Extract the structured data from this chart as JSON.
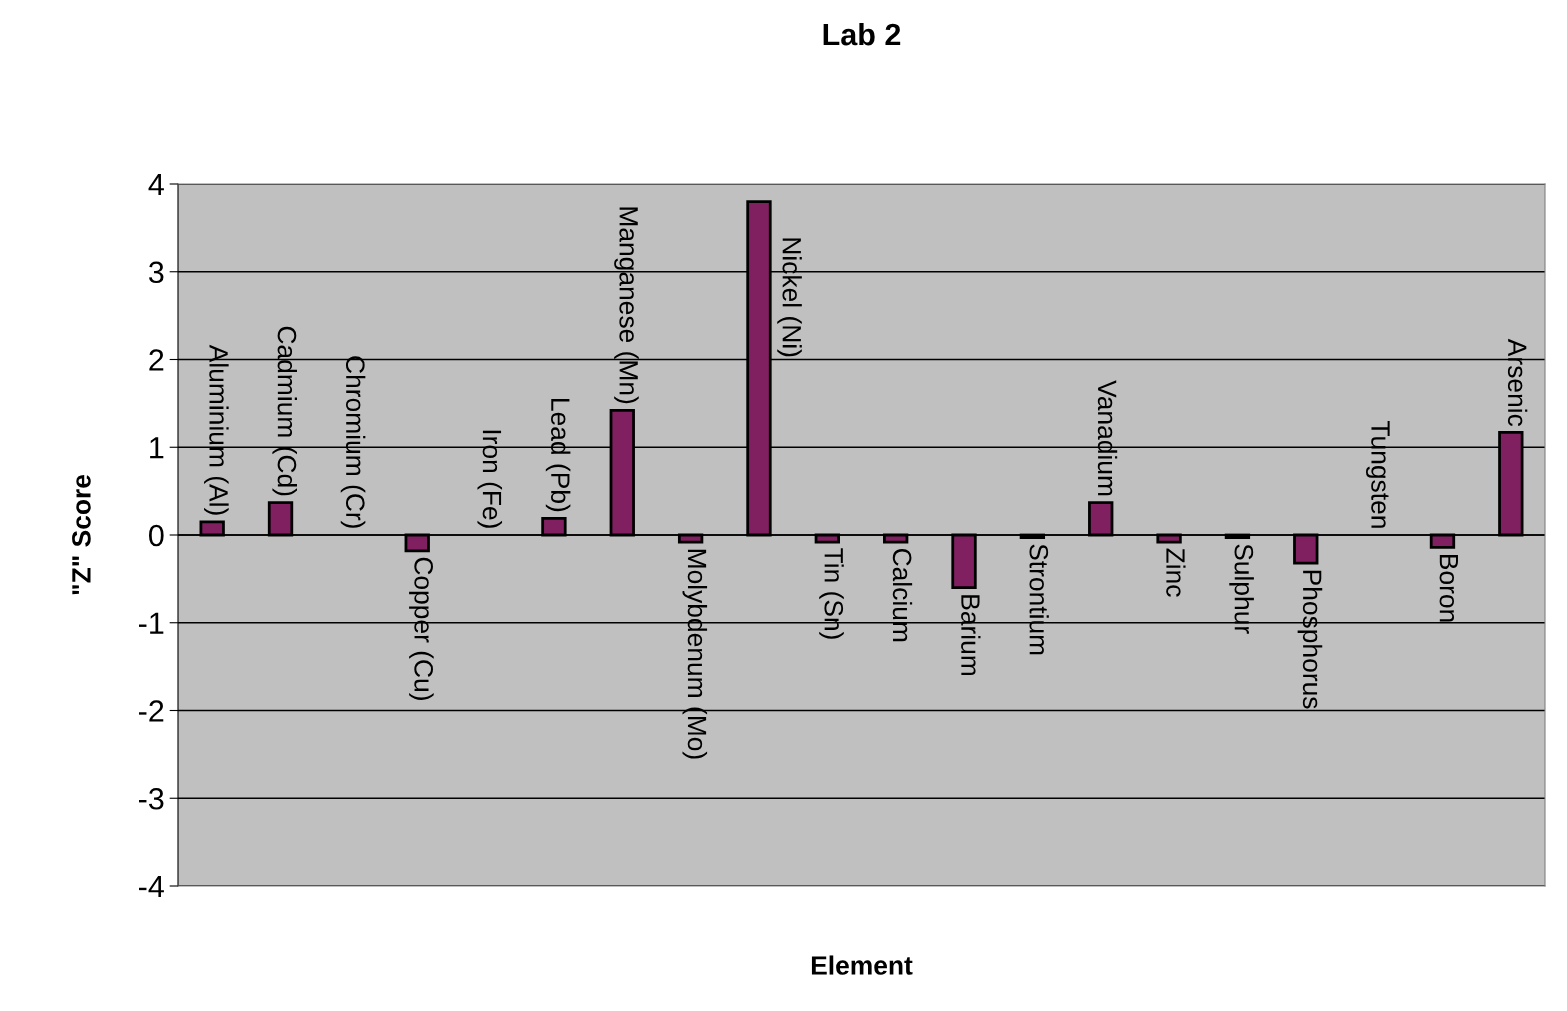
{
  "chart_data": {
    "type": "bar",
    "title": "Lab 2",
    "xlabel": "Element",
    "ylabel": "\"Z\" Score",
    "categories": [
      "Aluminium (Al)",
      "Cadmium (Cd)",
      "Chromium (Cr)",
      "Copper (Cu)",
      "Iron (Fe)",
      "Lead (Pb)",
      "Manganese (Mn)",
      "Molybdenum (Mo)",
      "Nickel (Ni)",
      "Tin (Sn)",
      "Calcium",
      "Barium",
      "Strontium",
      "Vanadium",
      "Zinc",
      "Sulphur",
      "Phosphorus",
      "Tungsten",
      "Boron",
      "Arsenic"
    ],
    "values": [
      0.15,
      0.37,
      0,
      -0.18,
      0,
      0.19,
      1.42,
      -0.08,
      3.8,
      -0.08,
      -0.08,
      -0.6,
      -0.03,
      0.37,
      -0.08,
      -0.03,
      -0.32,
      0,
      -0.14,
      1.17
    ],
    "color": "#802060",
    "ylim": [
      -4,
      4
    ],
    "yticks": [
      -4,
      -3,
      -2,
      -1,
      0,
      1,
      2,
      3,
      4
    ],
    "grid": "y",
    "tick_labels": "y",
    "legend": false
  }
}
